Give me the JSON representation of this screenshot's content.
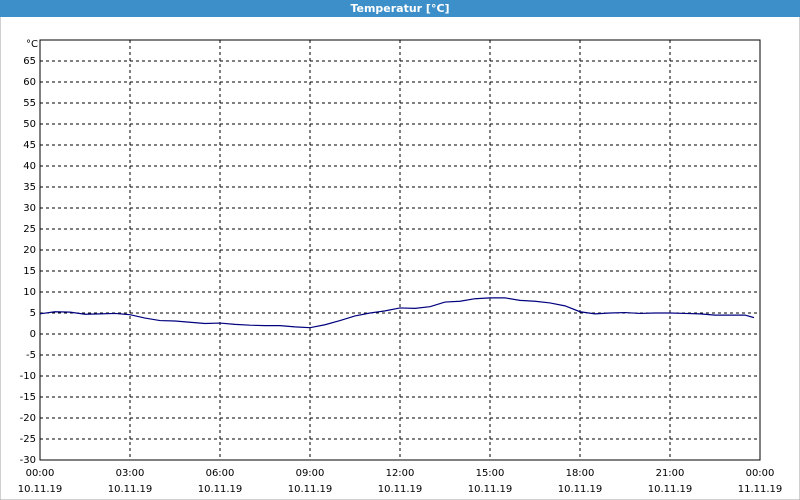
{
  "window_title": "Temperatur [°C]",
  "chart_data": {
    "type": "line",
    "y_unit": "°C",
    "x": [
      0,
      0.5,
      1,
      1.5,
      2,
      2.5,
      3,
      3.5,
      4,
      4.5,
      5,
      5.5,
      6,
      6.5,
      7,
      7.5,
      8,
      8.5,
      9,
      9.5,
      10,
      10.5,
      11,
      11.5,
      12,
      12.5,
      13,
      13.5,
      14,
      14.5,
      15,
      15.5,
      16,
      16.5,
      17,
      17.5,
      18,
      18.5,
      19,
      19.5,
      20,
      20.5,
      21,
      21.5,
      22,
      22.5,
      23,
      23.5,
      23.8
    ],
    "series": [
      {
        "color": "#00007f",
        "values": [
          4.8,
          5.3,
          5.2,
          4.7,
          4.8,
          4.9,
          4.6,
          3.8,
          3.2,
          3.1,
          2.8,
          2.5,
          2.6,
          2.3,
          2.1,
          2.0,
          2.0,
          1.7,
          1.5,
          2.2,
          3.2,
          4.3,
          5.0,
          5.5,
          6.2,
          6.1,
          6.5,
          7.6,
          7.8,
          8.4,
          8.6,
          8.6,
          8.0,
          7.8,
          7.4,
          6.7,
          5.3,
          4.8,
          5.0,
          5.1,
          4.9,
          5.0,
          5.0,
          4.9,
          4.8,
          4.5,
          4.5,
          4.5,
          3.9
        ]
      }
    ],
    "xlim": [
      0,
      24
    ],
    "ylim": [
      -30,
      70
    ],
    "xticks": [
      {
        "value": 0,
        "label": [
          "00:00",
          "10.11.19"
        ]
      },
      {
        "value": 3,
        "label": [
          "03:00",
          "10.11.19"
        ]
      },
      {
        "value": 6,
        "label": [
          "06:00",
          "10.11.19"
        ]
      },
      {
        "value": 9,
        "label": [
          "09:00",
          "10.11.19"
        ]
      },
      {
        "value": 12,
        "label": [
          "12:00",
          "10.11.19"
        ]
      },
      {
        "value": 15,
        "label": [
          "15:00",
          "10.11.19"
        ]
      },
      {
        "value": 18,
        "label": [
          "18:00",
          "10.11.19"
        ]
      },
      {
        "value": 21,
        "label": [
          "21:00",
          "10.11.19"
        ]
      },
      {
        "value": 24,
        "label": [
          "00:00",
          "11.11.19"
        ]
      }
    ],
    "yticks": [
      -30,
      -25,
      -20,
      -15,
      -10,
      -5,
      0,
      5,
      10,
      15,
      20,
      25,
      30,
      35,
      40,
      45,
      50,
      55,
      60,
      65
    ],
    "grid": true
  }
}
